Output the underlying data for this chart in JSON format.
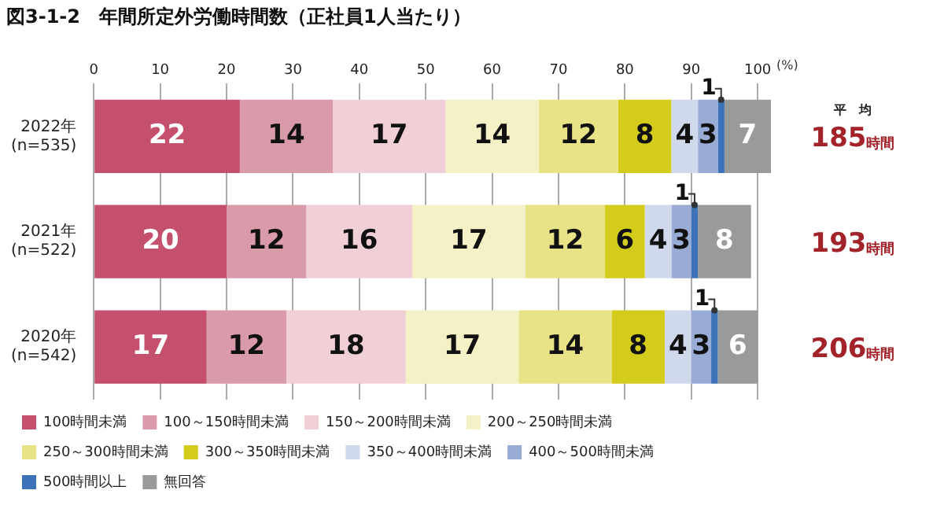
{
  "chart_data": {
    "type": "bar",
    "orientation": "horizontal",
    "stacked": true,
    "title": "図3-1-2　年間所定外労働時間数（正社員1人当たり）",
    "xlabel": "(%)",
    "categories": [
      "2022年\n(n=535)",
      "2021年\n(n=522)",
      "2020年\n(n=542)"
    ],
    "series": [
      {
        "name": "100時間未満",
        "color": "#c4506e",
        "values": [
          22,
          20,
          17
        ]
      },
      {
        "name": "100～150時間未満",
        "color": "#d99aaa",
        "values": [
          14,
          12,
          12
        ]
      },
      {
        "name": "150～200時間未満",
        "color": "#f0d0d6",
        "values": [
          17,
          16,
          18
        ]
      },
      {
        "name": "200～250時間未満",
        "color": "#f5f1c6",
        "values": [
          14,
          17,
          17
        ]
      },
      {
        "name": "250～300時間未満",
        "color": "#e8e386",
        "values": [
          12,
          12,
          14
        ]
      },
      {
        "name": "300～350時間未満",
        "color": "#d4cc1c",
        "values": [
          8,
          6,
          8
        ]
      },
      {
        "name": "350～400時間未満",
        "color": "#d0d8ec",
        "values": [
          4,
          4,
          4
        ]
      },
      {
        "name": "400～500時間未満",
        "color": "#98acd6",
        "values": [
          3,
          3,
          3
        ]
      },
      {
        "name": "500時間以上",
        "color": "#3c72b8",
        "values": [
          1,
          1,
          1
        ]
      },
      {
        "name": "無回答",
        "color": "#9a9a9a",
        "values": [
          7,
          8,
          6
        ]
      }
    ],
    "xlim": [
      0,
      102
    ],
    "xticks": [
      0,
      10,
      20,
      30,
      40,
      50,
      60,
      70,
      80,
      90,
      100
    ],
    "grid": "x",
    "legend": "bottom",
    "data_labels": true,
    "annotations": [
      "平　均",
      "185時間",
      "193時間",
      "206時間"
    ]
  }
}
